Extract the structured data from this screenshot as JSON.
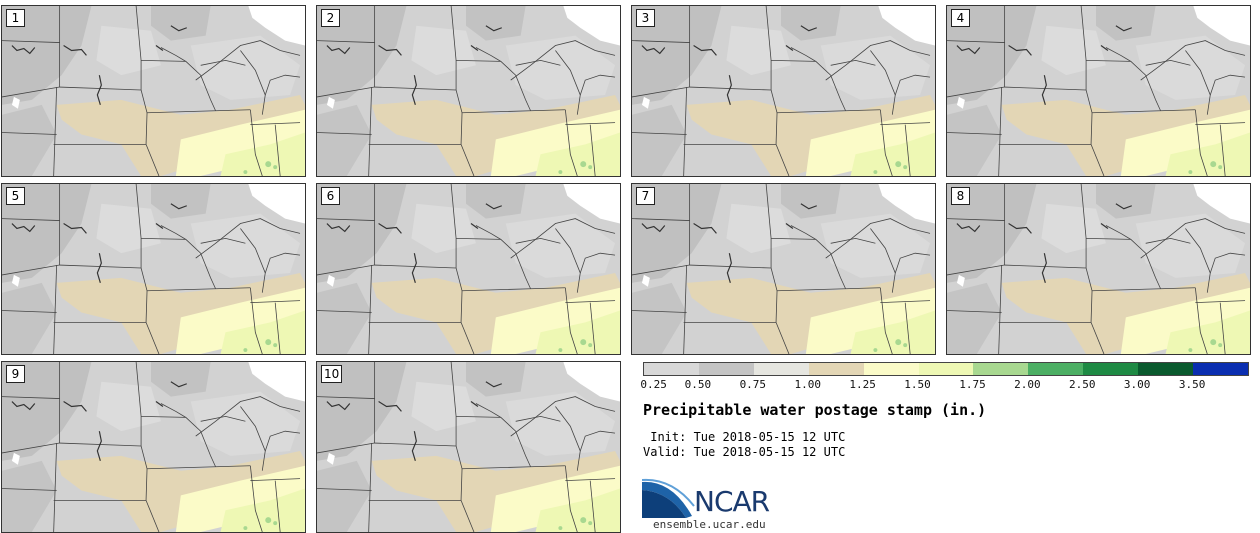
{
  "stamps": [
    {
      "label": "1"
    },
    {
      "label": "2"
    },
    {
      "label": "3"
    },
    {
      "label": "4"
    },
    {
      "label": "5"
    },
    {
      "label": "6"
    },
    {
      "label": "7"
    },
    {
      "label": "8"
    },
    {
      "label": "9"
    },
    {
      "label": "10"
    }
  ],
  "colorbar": {
    "ticks": [
      "0.25",
      "0.50",
      "0.75",
      "1.00",
      "1.25",
      "1.50",
      "1.75",
      "2.00",
      "2.50",
      "3.00",
      "3.50"
    ],
    "colors": [
      "#d8d8d8",
      "#c4c4c4",
      "#e6e6e0",
      "#e3d6b5",
      "#fbfbc8",
      "#eef8b4",
      "#a8d890",
      "#4caf64",
      "#1e8a44",
      "#0a5a2e",
      "#0a2eb0"
    ]
  },
  "title": "Precipitable water postage stamp (in.)",
  "init_line": " Init: Tue 2018-05-15 12 UTC",
  "valid_line": "Valid: Tue 2018-05-15 12 UTC",
  "logo": {
    "text": "NCAR",
    "site": "ensemble.ucar.edu"
  }
}
